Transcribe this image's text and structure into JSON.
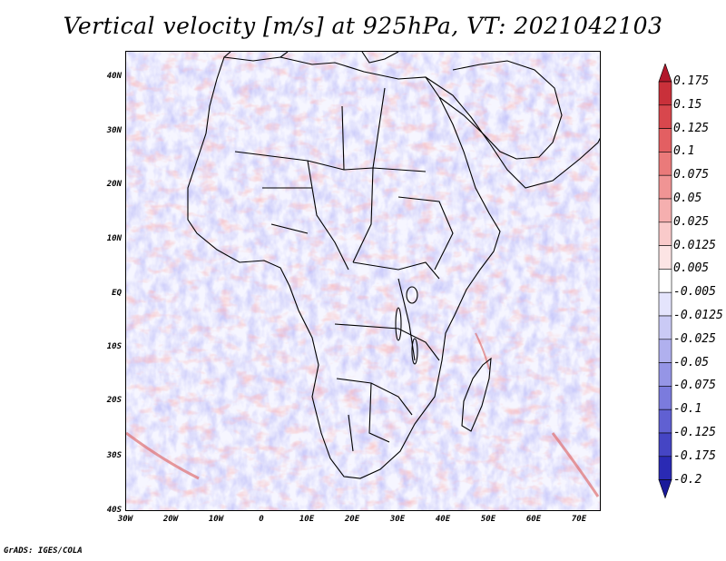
{
  "title": "Vertical velocity [m/s] at 925hPa, VT: 2021042103",
  "footer": "GrADS: IGES/COLA",
  "map": {
    "lat_labels": [
      "40N",
      "30N",
      "20N",
      "10N",
      "EQ",
      "10S",
      "20S",
      "30S",
      "40S"
    ],
    "lat_values": [
      40,
      30,
      20,
      10,
      0,
      -10,
      -20,
      -30,
      -40
    ],
    "lon_labels": [
      "30W",
      "20W",
      "10W",
      "0",
      "10E",
      "20E",
      "30E",
      "40E",
      "50E",
      "60E",
      "70E"
    ],
    "lon_values": [
      -30,
      -20,
      -10,
      0,
      10,
      20,
      30,
      40,
      50,
      60,
      70
    ],
    "region": {
      "lon_min": -30,
      "lon_max": 75,
      "lat_min": -40,
      "lat_max": 45
    }
  },
  "colorbar": {
    "levels": [
      "0.175",
      "0.15",
      "0.125",
      "0.1",
      "0.075",
      "0.05",
      "0.025",
      "0.0125",
      "0.005",
      "-0.005",
      "-0.0125",
      "-0.025",
      "-0.05",
      "-0.075",
      "-0.1",
      "-0.125",
      "-0.175",
      "-0.2"
    ],
    "colors": [
      "#b2182b",
      "#c9303a",
      "#d8474d",
      "#e35f62",
      "#ea7a7a",
      "#f09494",
      "#f5afaf",
      "#f9caca",
      "#fce4e4",
      "#ffffff",
      "#e4e4fc",
      "#cacaf5",
      "#b0b0ee",
      "#9595e6",
      "#7b7bdd",
      "#6060d2",
      "#4545c4",
      "#2a2ab4",
      "#1a1a9a"
    ],
    "accent_negative": "#1a1a9a",
    "accent_positive": "#b2182b"
  }
}
